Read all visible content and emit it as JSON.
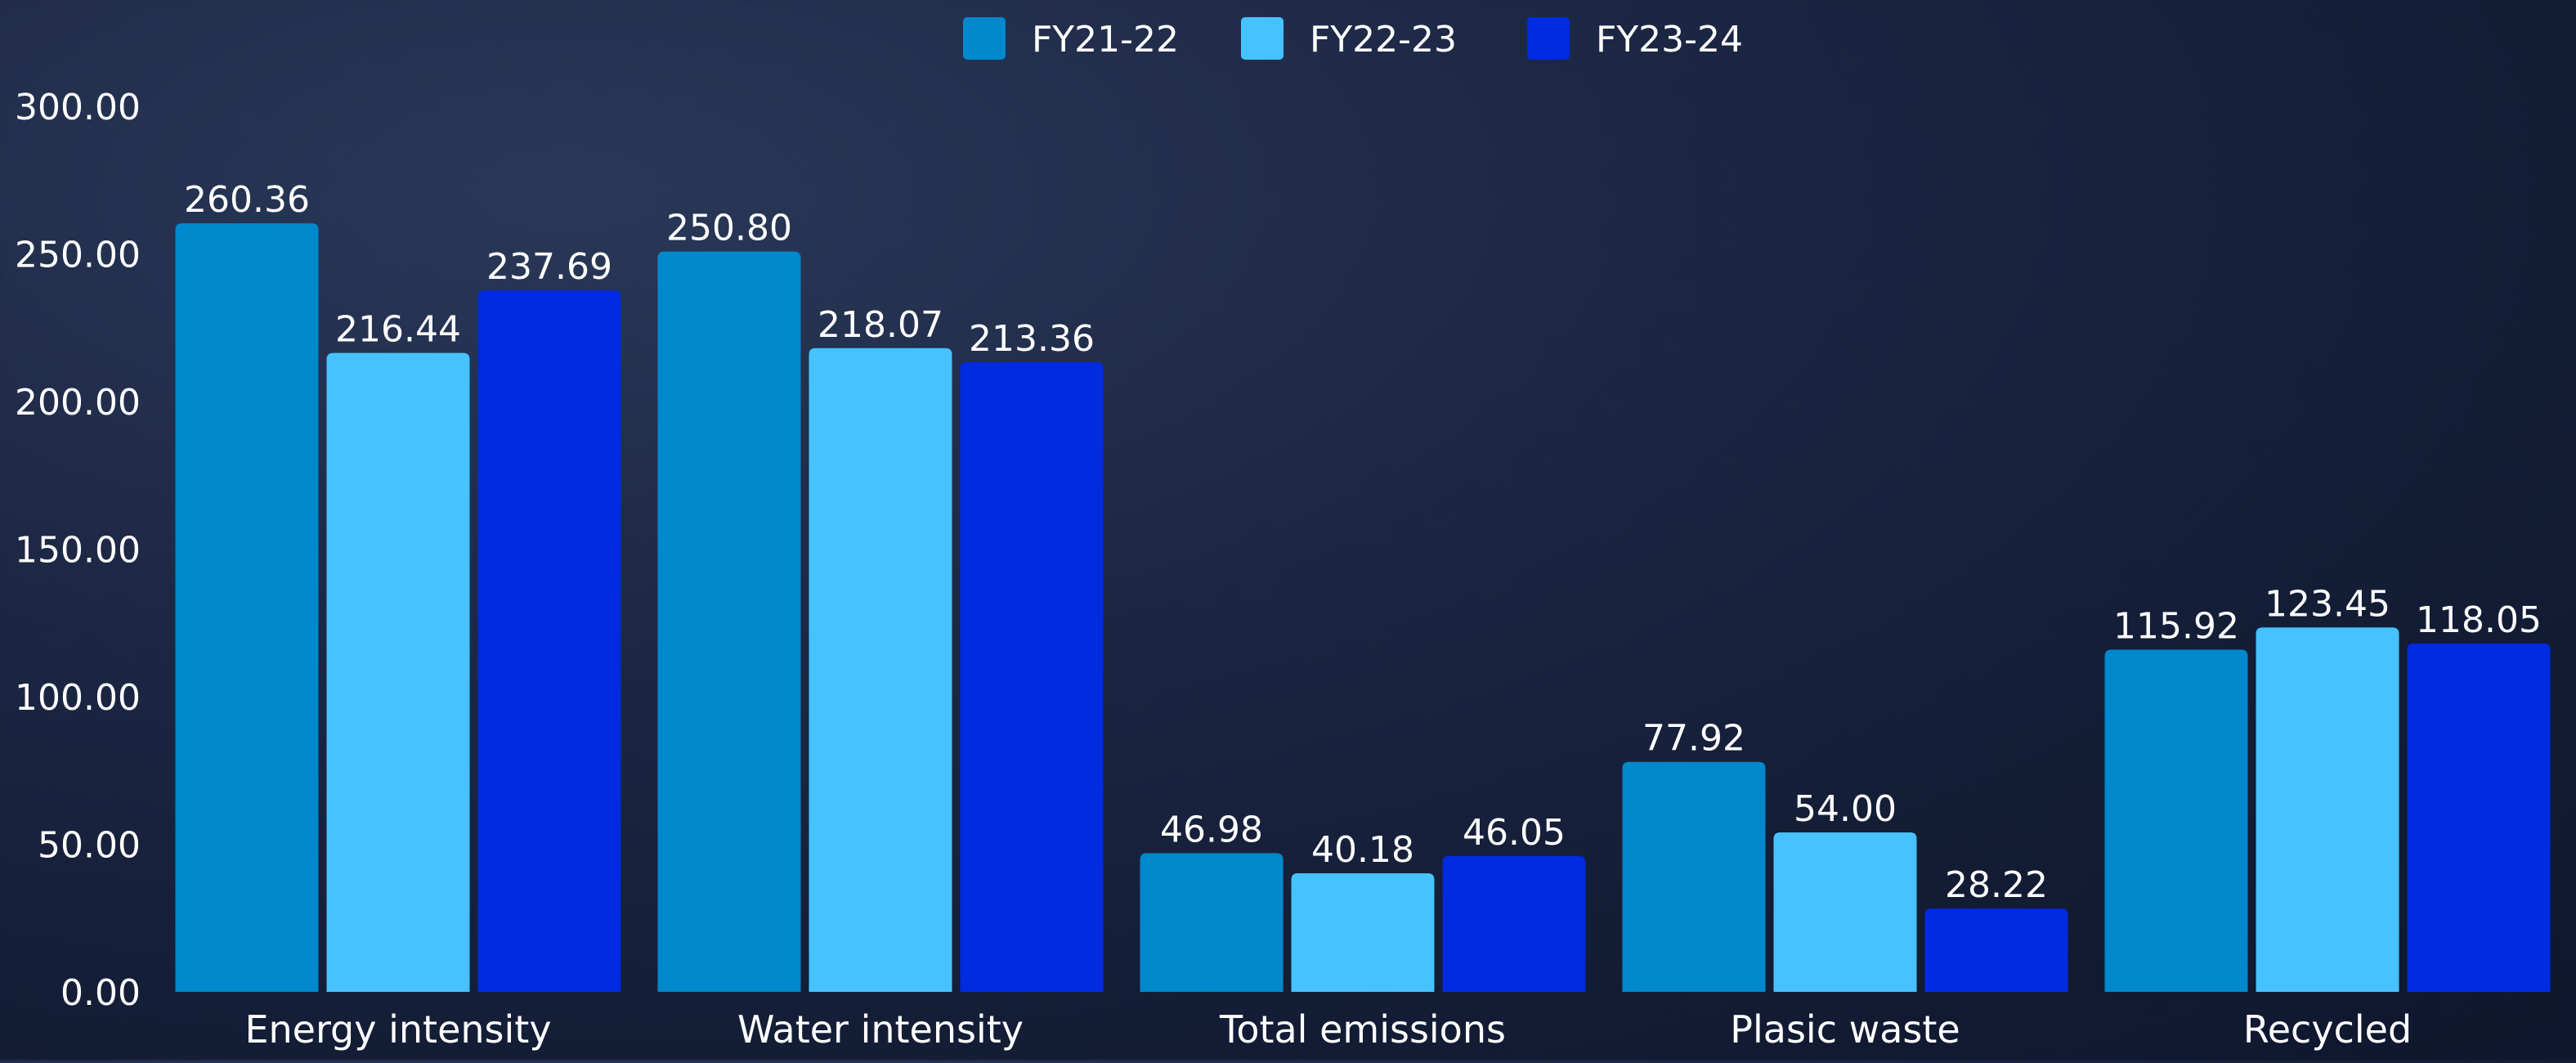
{
  "chart_data": {
    "type": "bar",
    "title": "",
    "xlabel": "",
    "ylabel": "",
    "ylim": [
      0,
      300
    ],
    "yticks": [
      "0.00",
      "50.00",
      "100.00",
      "150.00",
      "200.00",
      "250.00",
      "300.00"
    ],
    "grid": false,
    "legend_position": "top-center",
    "categories": [
      "Energy intensity",
      "Water intensity",
      "Total emissions",
      "Plasic waste",
      "Recycled"
    ],
    "series": [
      {
        "name": "FY21-22",
        "color": "#0088cc",
        "values": [
          260.36,
          250.8,
          46.98,
          77.92,
          115.92
        ],
        "labels": [
          "260.36",
          "250.80",
          "46.98",
          "77.92",
          "115.92"
        ]
      },
      {
        "name": "FY22-23",
        "color": "#45c2ff",
        "values": [
          216.44,
          218.07,
          40.18,
          54.0,
          123.45
        ],
        "labels": [
          "216.44",
          "218.07",
          "40.18",
          "54.00",
          "123.45"
        ]
      },
      {
        "name": "FY23-24",
        "color": "#002be0",
        "values": [
          237.69,
          213.36,
          46.05,
          28.22,
          118.05
        ],
        "labels": [
          "237.69",
          "213.36",
          "46.05",
          "28.22",
          "118.05"
        ]
      }
    ]
  }
}
